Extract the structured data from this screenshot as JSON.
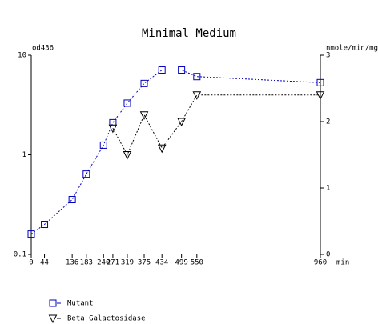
{
  "chart_data": {
    "type": "line",
    "title": "Minimal Medium",
    "ylabel": "od436",
    "y2label": "nmole/min/mg",
    "xlabel": "min",
    "x": [
      0,
      44,
      136,
      183,
      240,
      271,
      319,
      375,
      434,
      499,
      550,
      960
    ],
    "xlim": [
      0,
      960
    ],
    "xticks": [
      0,
      44,
      136,
      183,
      240,
      271,
      319,
      375,
      434,
      499,
      550,
      960
    ],
    "ylog": true,
    "ylim": [
      0.1,
      10
    ],
    "yticks": [
      0.1,
      1,
      10
    ],
    "y2lim": [
      0,
      3
    ],
    "y2ticks": [
      0,
      1,
      2,
      3
    ],
    "legend": "bottom-left",
    "series": [
      {
        "name": "Mutant",
        "color": "#0000c0",
        "marker": "square",
        "values": [
          0.16,
          0.2,
          0.355,
          0.64,
          1.25,
          2.1,
          3.3,
          5.2,
          7.1,
          7.1,
          6.1,
          5.3
        ]
      },
      {
        "name": "Beta Galactosidase",
        "color": "#000000",
        "marker": "triangle-down",
        "axis": "y2",
        "values": [
          null,
          null,
          null,
          null,
          null,
          1.9,
          1.5,
          2.1,
          1.6,
          2.0,
          2.4,
          2.4
        ]
      }
    ]
  }
}
